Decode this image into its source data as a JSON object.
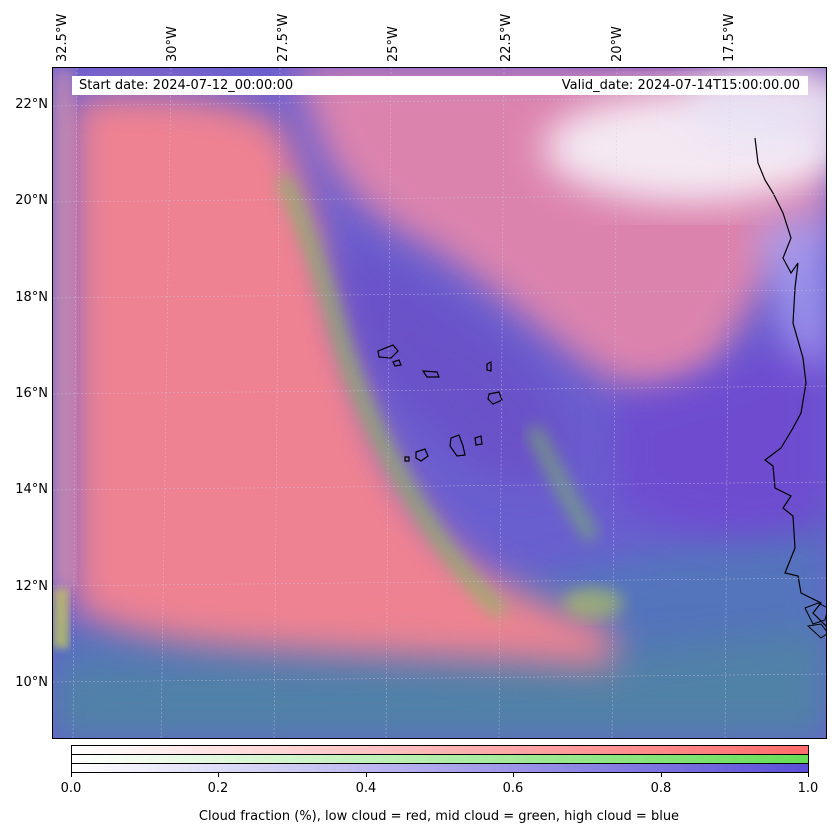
{
  "header": {
    "start_date": "Start date: 2024-07-12_00:00:00",
    "valid_date": "Valid_date: 2024-07-14T15:00:00.00"
  },
  "axes": {
    "lon_labels": [
      "32.5°W",
      "30°W",
      "27.5°W",
      "25°W",
      "22.5°W",
      "20°W",
      "17.5°W"
    ],
    "lat_labels": [
      "22°N",
      "20°N",
      "18°N",
      "16°N",
      "14°N",
      "12°N",
      "10°N"
    ]
  },
  "colorbar": {
    "ticks": [
      "0.0",
      "0.2",
      "0.4",
      "0.6",
      "0.8",
      "1.0"
    ],
    "caption": "Cloud fraction (%), low cloud = red, mid cloud = green, high cloud = blue",
    "colors": {
      "low": "#ff6b6b",
      "mid": "#66dd55",
      "high": "#5a4fd8"
    }
  },
  "map_colors": {
    "background_high_cloud": "#6a5fcf",
    "low_cloud": "#f6848f",
    "clear_sky": "#f5f5fa",
    "mid_cloud": "#7fc45a",
    "coastline": "#000000"
  }
}
